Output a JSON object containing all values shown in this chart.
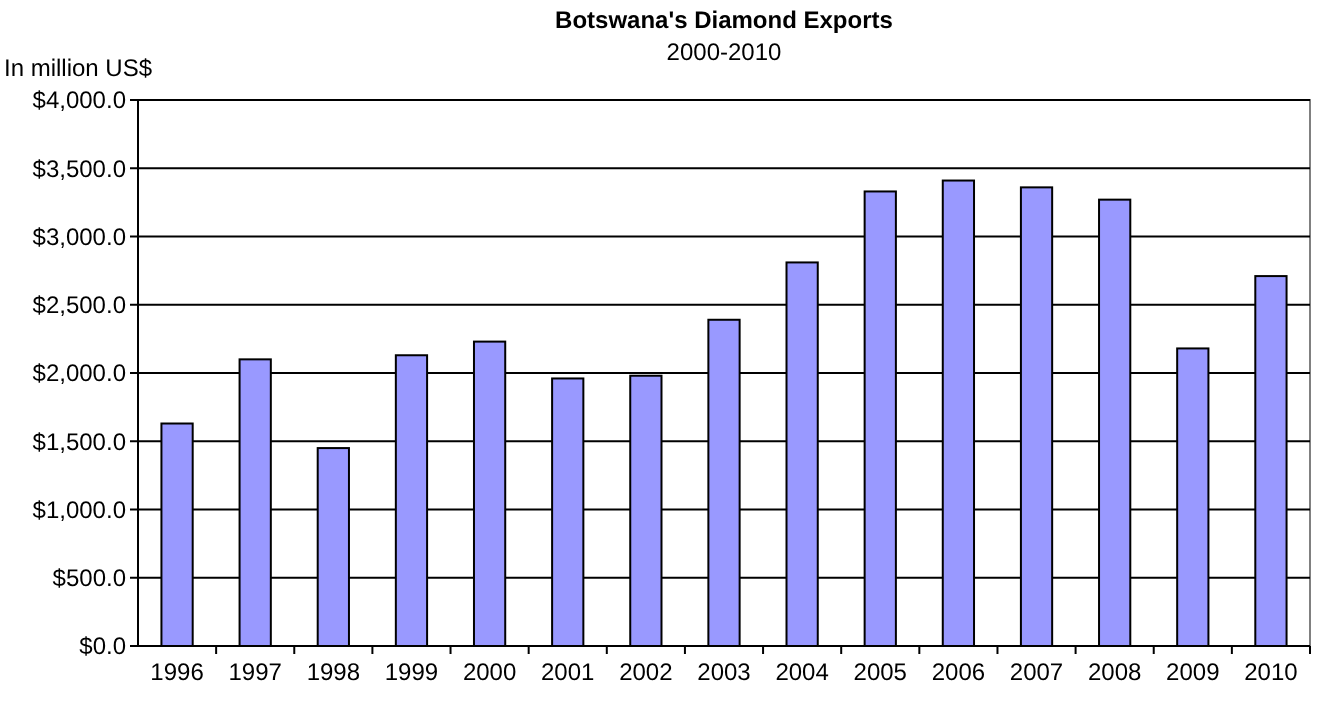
{
  "chart_data": {
    "type": "bar",
    "title": "Botswana's Diamond Exports",
    "subtitle": "2000-2010",
    "ylabel": "In million US$",
    "categories": [
      "1996",
      "1997",
      "1998",
      "1999",
      "2000",
      "2001",
      "2002",
      "2003",
      "2004",
      "2005",
      "2006",
      "2007",
      "2008",
      "2009",
      "2010"
    ],
    "values": [
      1630,
      2100,
      1450,
      2130,
      2230,
      1960,
      1980,
      2390,
      2810,
      3330,
      3410,
      3360,
      3270,
      2180,
      2710
    ],
    "color": "#9999ff",
    "ylim": [
      0,
      4000
    ],
    "yticks": [
      {
        "value": 0,
        "label": "$0.0"
      },
      {
        "value": 500,
        "label": "$500.0"
      },
      {
        "value": 1000,
        "label": "$1,000.0"
      },
      {
        "value": 1500,
        "label": "$1,500.0"
      },
      {
        "value": 2000,
        "label": "$2,000.0"
      },
      {
        "value": 2500,
        "label": "$2,500.0"
      },
      {
        "value": 3000,
        "label": "$3,000.0"
      },
      {
        "value": 3500,
        "label": "$3,500.0"
      },
      {
        "value": 4000,
        "label": "$4,000.0"
      }
    ],
    "grid": "y"
  }
}
